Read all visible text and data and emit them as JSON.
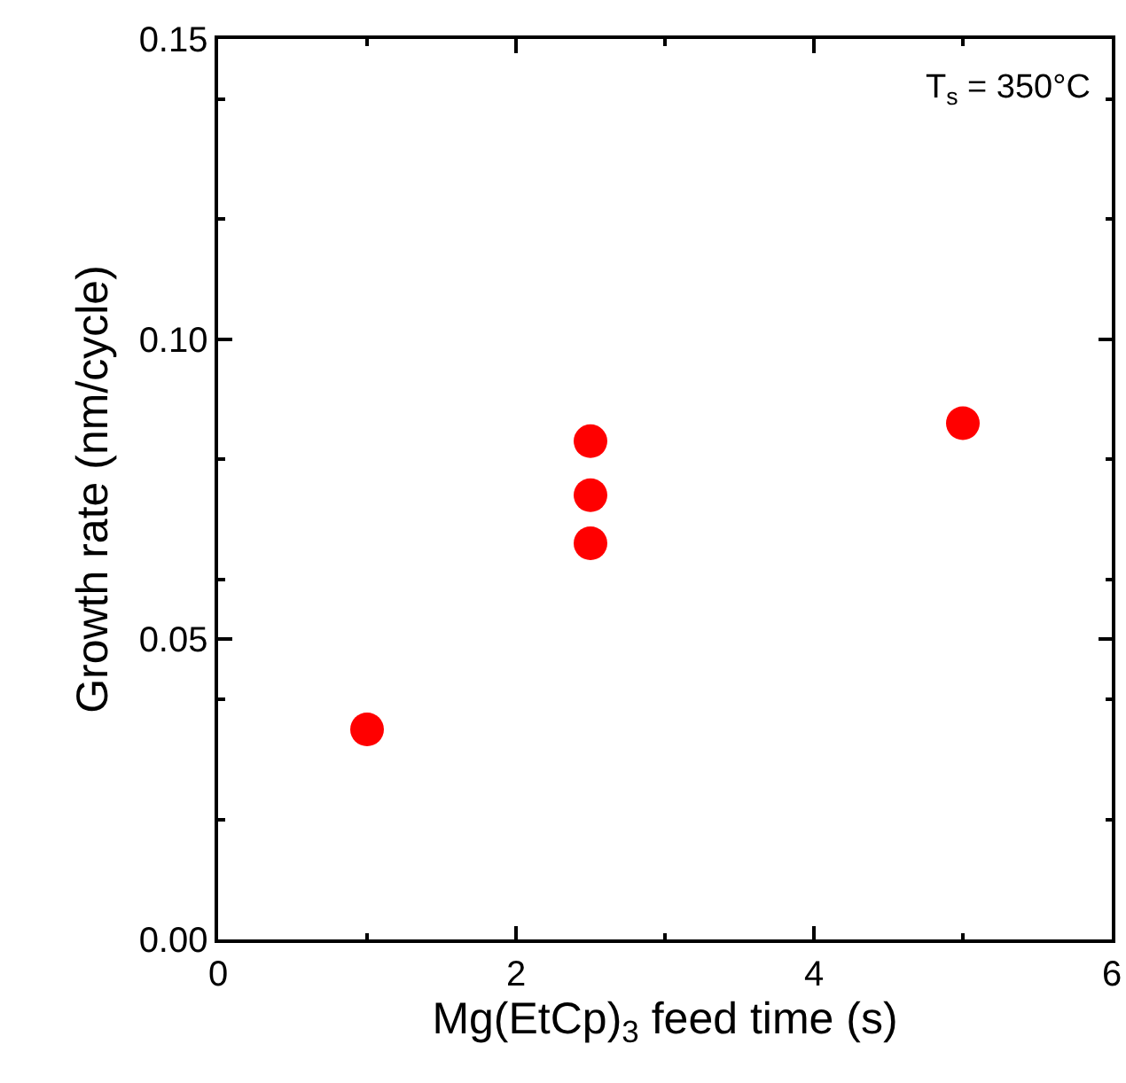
{
  "chart_data": {
    "type": "scatter",
    "xlabel": "Mg(EtCp)$_{3}$ feed time (s)",
    "ylabel": "Growth rate (nm/cycle)",
    "annotations": [
      "T$_{s}$ = 350°C"
    ],
    "x": [
      1,
      2.5,
      2.5,
      2.5,
      5
    ],
    "values": [
      0.035,
      0.083,
      0.074,
      0.066,
      0.086
    ],
    "color": "#ff0000",
    "marker": "circle",
    "grid": false,
    "legend": false,
    "xlim": [
      0,
      6
    ],
    "xticks": [
      0,
      2,
      4,
      6
    ],
    "ylim": [
      0,
      0.15
    ],
    "yticks": [
      {
        "value": 0,
        "label": "0.00"
      },
      {
        "value": 0.05,
        "label": "0.05"
      },
      {
        "value": 0.1,
        "label": "0.10"
      },
      {
        "value": 0.15,
        "label": "0.15"
      }
    ]
  }
}
